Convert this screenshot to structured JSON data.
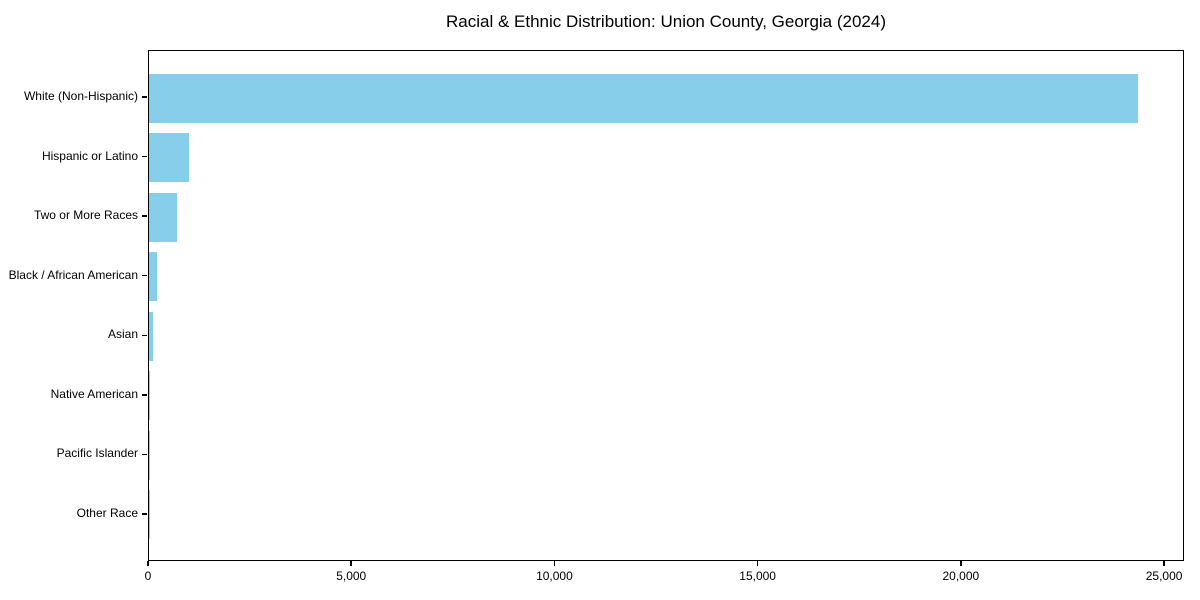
{
  "chart_data": {
    "type": "bar",
    "orientation": "horizontal",
    "title": "Racial & Ethnic Distribution: Union County, Georgia (2024)",
    "categories": [
      "White (Non-Hispanic)",
      "Hispanic or Latino",
      "Two or More Races",
      "Black / African American",
      "Asian",
      "Native American",
      "Pacific Islander",
      "Other Race"
    ],
    "values": [
      24330,
      990,
      680,
      190,
      90,
      20,
      10,
      5
    ],
    "xlabel": "",
    "ylabel": "",
    "xlim": [
      0,
      25490
    ],
    "xticks": [
      0,
      5000,
      10000,
      15000,
      20000,
      25000
    ],
    "xtick_labels": [
      "0",
      "5,000",
      "10,000",
      "15,000",
      "20,000",
      "25,000"
    ],
    "bar_color": "#87CEEB",
    "text_color": "#000000",
    "grid": false,
    "legend": null
  }
}
